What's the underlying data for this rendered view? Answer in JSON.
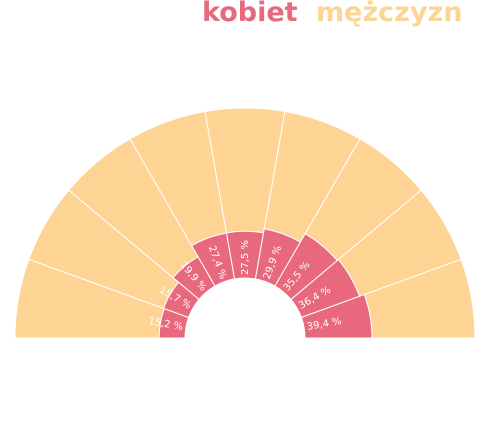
{
  "colors": {
    "women": "#e8687e",
    "men": "#fdd494",
    "separator": "#ffffff"
  },
  "legend": {
    "women_label": "kobiet",
    "men_label": "mężczyzn"
  },
  "chart_data": {
    "type": "radial-stacked-bar",
    "title": "",
    "series": [
      {
        "name": "kobiet",
        "values": [
          15.2,
          15.7,
          19.9,
          27.4,
          27.5,
          29.9,
          35.5,
          36.4,
          39.4
        ],
        "labels": [
          "15,2 %",
          "15,7 %",
          "19,9 %",
          "27,4 %",
          "27,5 %",
          "29,9 %",
          "35,5 %",
          "36,4 %",
          "39,4 %"
        ]
      },
      {
        "name": "mężczyzn",
        "values": [
          84.8,
          84.3,
          80.1,
          72.6,
          72.5,
          70.1,
          64.5,
          63.6,
          60.6
        ]
      }
    ],
    "range": [
      0,
      100
    ],
    "legend_position": "top"
  }
}
